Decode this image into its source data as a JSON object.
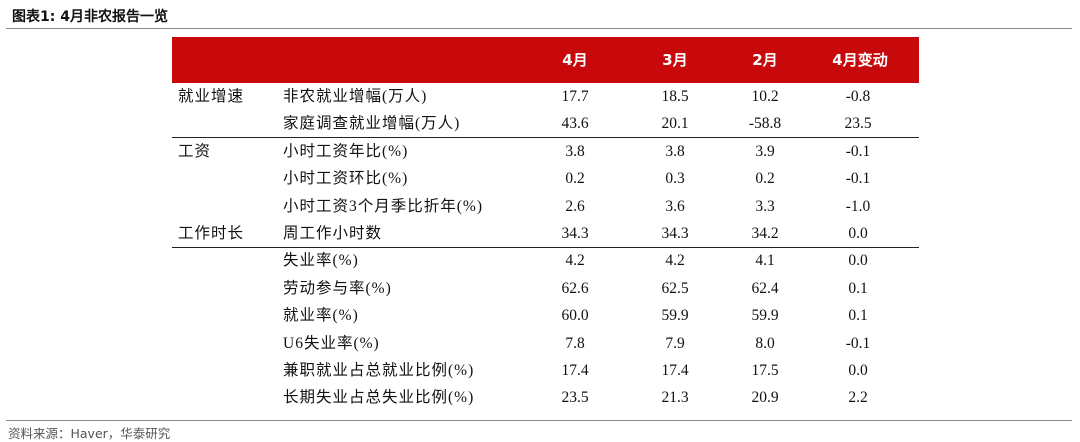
{
  "title": "图表1:  4月非农报告一览",
  "columns": [
    "4月",
    "3月",
    "2月",
    "4月变动"
  ],
  "rows": [
    {
      "category": "就业增速",
      "item": "非农就业增幅(万人)",
      "values": [
        "17.7",
        "18.5",
        "10.2",
        "-0.8"
      ]
    },
    {
      "category": "",
      "item": "家庭调查就业增幅(万人)",
      "values": [
        "43.6",
        "20.1",
        "-58.8",
        "23.5"
      ]
    },
    {
      "category": "工资",
      "item": "小时工资年比(%)",
      "values": [
        "3.8",
        "3.8",
        "3.9",
        "-0.1"
      ]
    },
    {
      "category": "",
      "item": "小时工资环比(%)",
      "values": [
        "0.2",
        "0.3",
        "0.2",
        "-0.1"
      ]
    },
    {
      "category": "",
      "item": "小时工资3个月季比折年(%)",
      "values": [
        "2.6",
        "3.6",
        "3.3",
        "-1.0"
      ]
    },
    {
      "category": "工作时长",
      "item": "周工作小时数",
      "values": [
        "34.3",
        "34.3",
        "34.2",
        "0.0"
      ]
    },
    {
      "category": "",
      "item": "失业率(%)",
      "values": [
        "4.2",
        "4.2",
        "4.1",
        "0.0"
      ]
    },
    {
      "category": "",
      "item": "劳动参与率(%)",
      "values": [
        "62.6",
        "62.5",
        "62.4",
        "0.1"
      ]
    },
    {
      "category": "",
      "item": "就业率(%)",
      "values": [
        "60.0",
        "59.9",
        "59.9",
        "0.1"
      ]
    },
    {
      "category": "",
      "item": "U6失业率(%)",
      "values": [
        "7.8",
        "7.9",
        "8.0",
        "-0.1"
      ]
    },
    {
      "category": "",
      "item": "兼职就业占总就业比例(%)",
      "values": [
        "17.4",
        "17.4",
        "17.5",
        "0.0"
      ]
    },
    {
      "category": "",
      "item": "长期失业占总失业比例(%)",
      "values": [
        "23.5",
        "21.3",
        "20.9",
        "2.2"
      ]
    }
  ],
  "source": "资料来源：Haver，华泰研究",
  "colors": {
    "header_bg": "#c8090b",
    "header_text": "#ffffff"
  }
}
